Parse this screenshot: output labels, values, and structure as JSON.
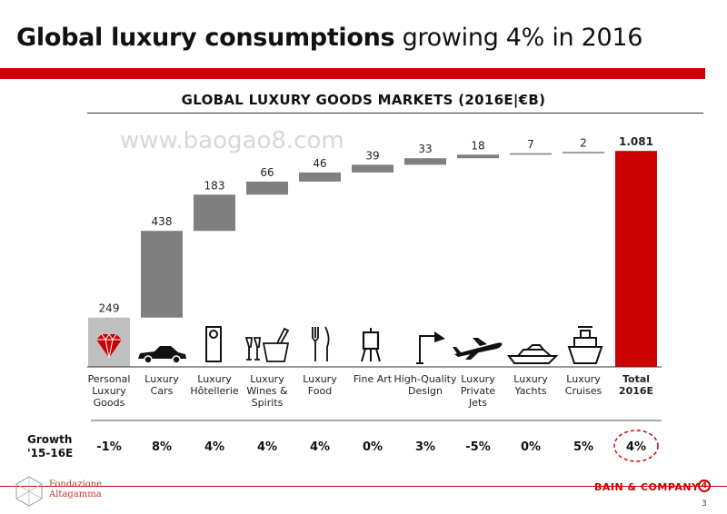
{
  "title": {
    "bold": "Global luxury consumptions",
    "rest": " growing 4% in 2016"
  },
  "chart_heading": "GLOBAL LUXURY GOODS MARKETS (2016E|€B)",
  "watermark": "www.baogao8.com",
  "growth_title": "Growth\n'15-16E",
  "chart_data": {
    "type": "bar",
    "subtype": "waterfall",
    "title": "GLOBAL LUXURY GOODS MARKETS (2016E|€B)",
    "unit": "€B",
    "categories": [
      "Personal Luxury Goods",
      "Luxury Cars",
      "Luxury Hôtellerie",
      "Luxury Wines & Spirits",
      "Luxury Food",
      "Fine Art",
      "High-Quality Design",
      "Luxury Private Jets",
      "Luxury Yachts",
      "Luxury Cruises",
      "Total 2016E"
    ],
    "category_lines": [
      [
        "Personal",
        "Luxury",
        "Goods"
      ],
      [
        "Luxury",
        "Cars"
      ],
      [
        "Luxury",
        "Hôtellerie"
      ],
      [
        "Luxury",
        "Wines &",
        "Spirits"
      ],
      [
        "Luxury",
        "Food"
      ],
      [
        "Fine Art"
      ],
      [
        "High-Quality",
        "Design"
      ],
      [
        "Luxury",
        "Private",
        "Jets"
      ],
      [
        "Luxury",
        "Yachts"
      ],
      [
        "Luxury",
        "Cruises"
      ],
      [
        "Total",
        "2016E"
      ]
    ],
    "values": [
      249,
      438,
      183,
      66,
      46,
      39,
      33,
      18,
      7,
      2,
      1081
    ],
    "value_labels": [
      "249",
      "438",
      "183",
      "66",
      "46",
      "39",
      "33",
      "18",
      "7",
      "2",
      "1.081"
    ],
    "growth": [
      "-1%",
      "8%",
      "4%",
      "4%",
      "4%",
      "0%",
      "3%",
      "-5%",
      "0%",
      "5%",
      "4%"
    ],
    "total_index": 10,
    "ylim": [
      0,
      1081
    ],
    "colors": {
      "first": "#bfbfbf",
      "middle": "#7f7f7f",
      "total": "#cc0000"
    }
  },
  "icons": [
    "diamond-icon",
    "car-icon",
    "door-hanger-icon",
    "wine-glasses-icon",
    "fork-knife-icon",
    "easel-icon",
    "desk-lamp-icon",
    "airplane-icon",
    "yacht-icon",
    "cruise-ship-icon"
  ],
  "footer": {
    "left_logo": [
      "Fondazione",
      "Altagamma"
    ],
    "right_logo": "BAIN & COMPANY",
    "right_logo_mark": "4",
    "page_number": "3"
  }
}
